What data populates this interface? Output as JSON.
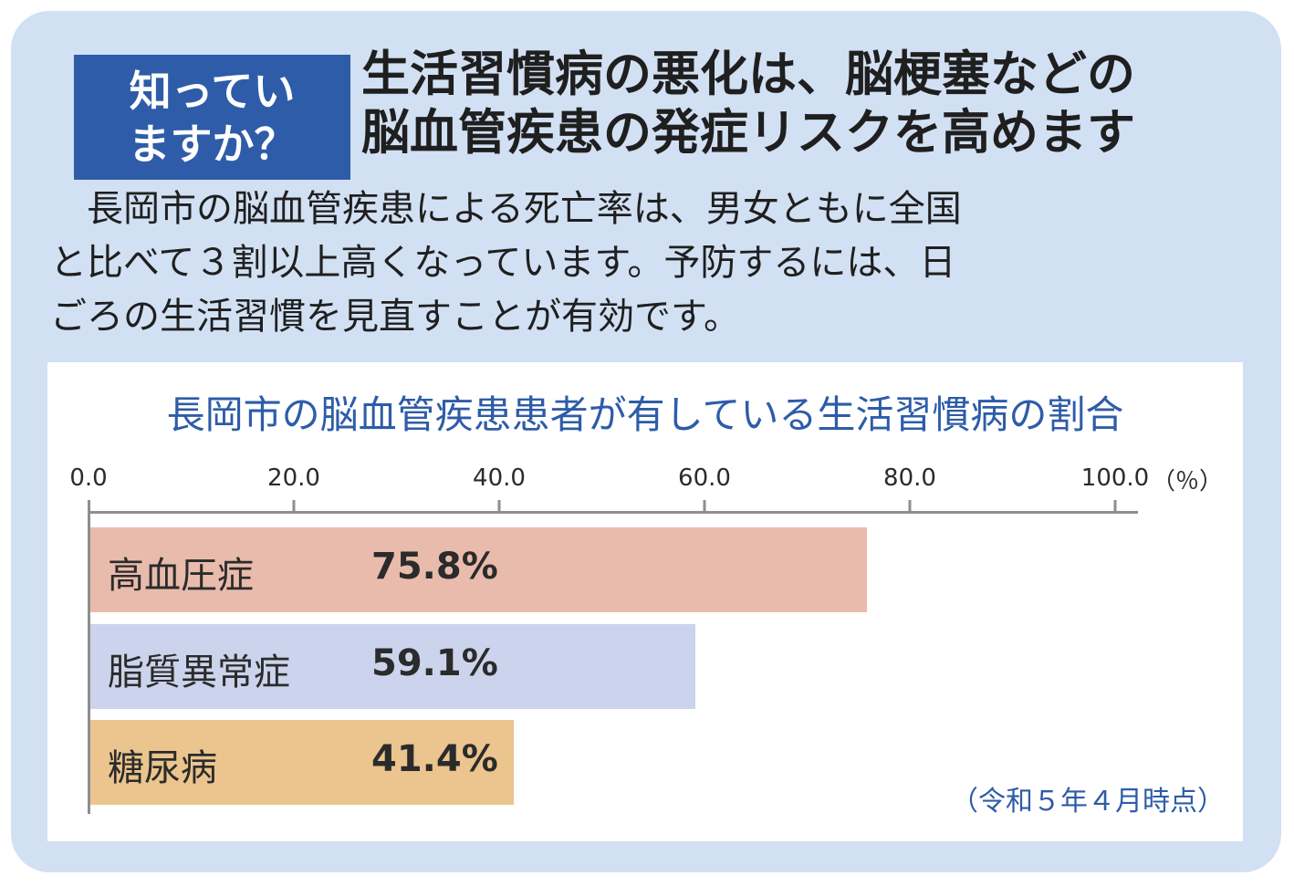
{
  "badge": {
    "line1": "知ってい",
    "line2": "ますか？"
  },
  "headline": {
    "line1": "生活習慣病の悪化は、脳梗塞などの",
    "line2": "脳血管疾患の発症リスクを高めます"
  },
  "body": {
    "line1": "　長岡市の脳血管疾患による死亡率は、男女ともに全国",
    "line2": "と比べて３割以上高くなっています。予防するには、日",
    "line3": "ごろの生活習慣を見直すことが有効です。"
  },
  "colors": {
    "card": "#d2e0f3",
    "badge": "#2e5ca8",
    "title": "#2e5ca8"
  },
  "chart_data": {
    "type": "bar",
    "orientation": "horizontal",
    "title": "長岡市の脳血管疾患患者が有している生活習慣病の割合",
    "categories": [
      "高血圧症",
      "脂質異常症",
      "糖尿病"
    ],
    "values": [
      75.8,
      59.1,
      41.4
    ],
    "value_labels": [
      "75.8%",
      "59.1%",
      "41.4%"
    ],
    "bar_colors": [
      "#e8bbad",
      "#cbd4ec",
      "#ebc48e"
    ],
    "xlim": [
      0,
      100
    ],
    "ticks": [
      "0.0",
      "20.0",
      "40.0",
      "60.0",
      "80.0",
      "100.0"
    ],
    "unit": "（％）",
    "note": "（令和５年４月時点）"
  }
}
